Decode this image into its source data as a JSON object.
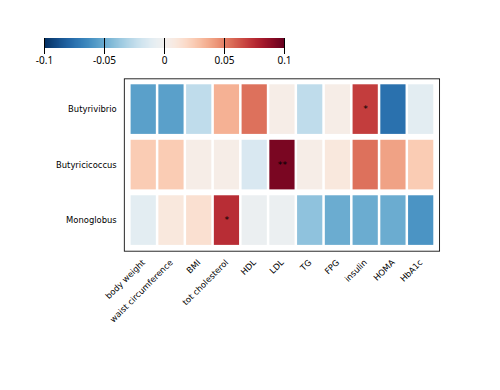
{
  "chart_data": {
    "type": "heatmap",
    "categories": [
      "body weight",
      "waist circumference",
      "BMI",
      "tot cholesterol",
      "HDL",
      "LDL",
      "TG",
      "FPG",
      "insulin",
      "HOMA",
      "HbA1c"
    ],
    "rows": [
      "Butyrivibrio",
      "Butyricicoccus",
      "Monoglobus"
    ],
    "values": [
      [
        -0.055,
        -0.055,
        -0.025,
        0.035,
        0.055,
        0.005,
        -0.025,
        0.005,
        0.07,
        -0.075,
        -0.01
      ],
      [
        0.025,
        0.025,
        0.005,
        0.005,
        -0.015,
        0.095,
        0.005,
        0.01,
        0.055,
        0.04,
        0.025
      ],
      [
        -0.01,
        0.01,
        0.015,
        0.075,
        -0.005,
        -0.005,
        -0.04,
        -0.05,
        -0.05,
        -0.05,
        -0.06
      ]
    ],
    "cell_labels": [
      [
        null,
        null,
        null,
        null,
        null,
        null,
        null,
        null,
        "*",
        null,
        null
      ],
      [
        null,
        null,
        null,
        null,
        null,
        "**",
        null,
        null,
        null,
        null,
        null
      ],
      [
        null,
        null,
        null,
        "*",
        null,
        null,
        null,
        null,
        null,
        null,
        null
      ]
    ],
    "color_range": [
      -0.1,
      0.1
    ],
    "color_ticks": [
      0.1,
      0.05,
      0,
      -0.05,
      -0.1
    ]
  }
}
